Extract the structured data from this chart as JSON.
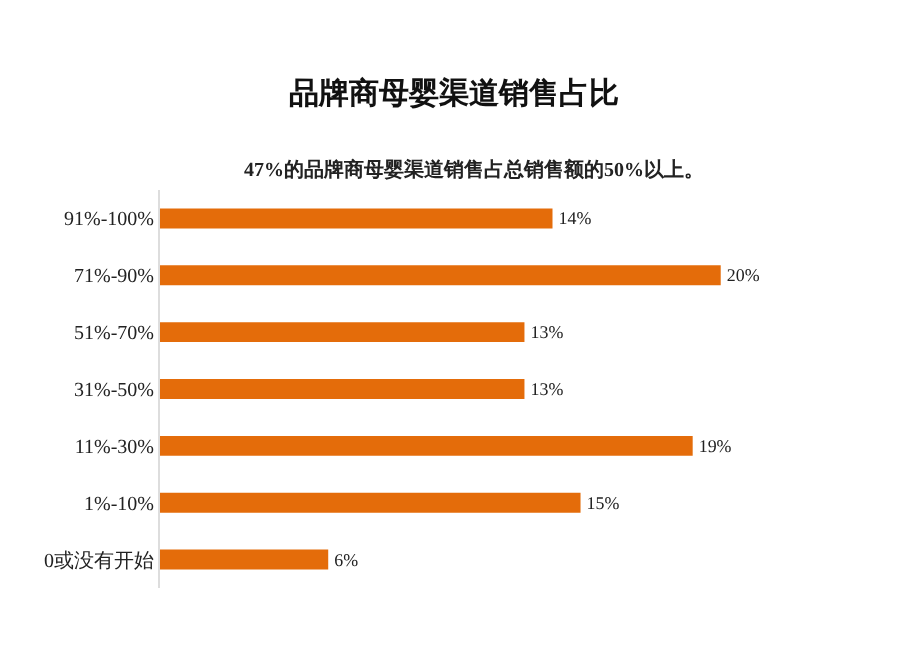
{
  "chart_data": {
    "type": "bar",
    "orientation": "horizontal",
    "title": "品牌商母婴渠道销售占比",
    "subtitle": "47%的品牌商母婴渠道销售占总销售额的50%以上。",
    "categories": [
      "91%-100%",
      "71%-90%",
      "51%-70%",
      "31%-50%",
      "11%-30%",
      "1%-10%",
      "0或没有开始"
    ],
    "values": [
      14,
      20,
      13,
      13,
      19,
      15,
      6
    ],
    "value_labels": [
      "14%",
      "20%",
      "13%",
      "13%",
      "19%",
      "15%",
      "6%"
    ],
    "color": "#e46c0a"
  }
}
